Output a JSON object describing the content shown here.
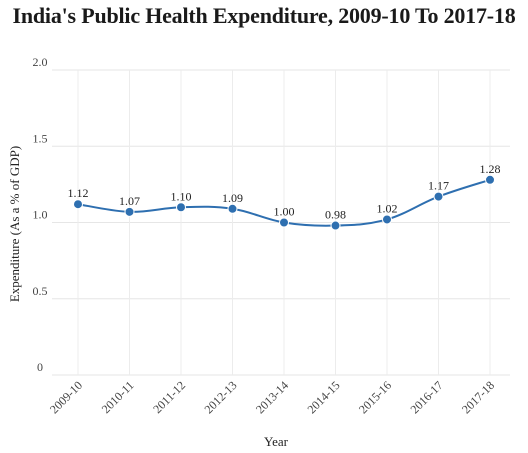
{
  "chart_data": {
    "type": "line",
    "title": "India's Public Health Expenditure, 2009-10 To 2017-18",
    "xlabel": "Year",
    "ylabel": "Expenditure (As a % of GDP)",
    "categories": [
      "2009-10",
      "2010-11",
      "2011-12",
      "2012-13",
      "2013-14",
      "2014-15",
      "2015-16",
      "2016-17",
      "2017-18"
    ],
    "values": [
      1.12,
      1.07,
      1.1,
      1.09,
      1.0,
      0.98,
      1.02,
      1.17,
      1.28
    ],
    "data_labels": [
      "1.12",
      "1.07",
      "1.10",
      "1.09",
      "1.00",
      "0.98",
      "1.02",
      "1.17",
      "1.28"
    ],
    "yticks": [
      0,
      0.5,
      1.0,
      1.5,
      2.0
    ],
    "ytick_labels": [
      "0",
      "0.5",
      "1.0",
      "1.5",
      "2.0"
    ],
    "ylim": [
      0,
      2.0
    ],
    "grid": true,
    "line_color": "#2e6fb0"
  }
}
